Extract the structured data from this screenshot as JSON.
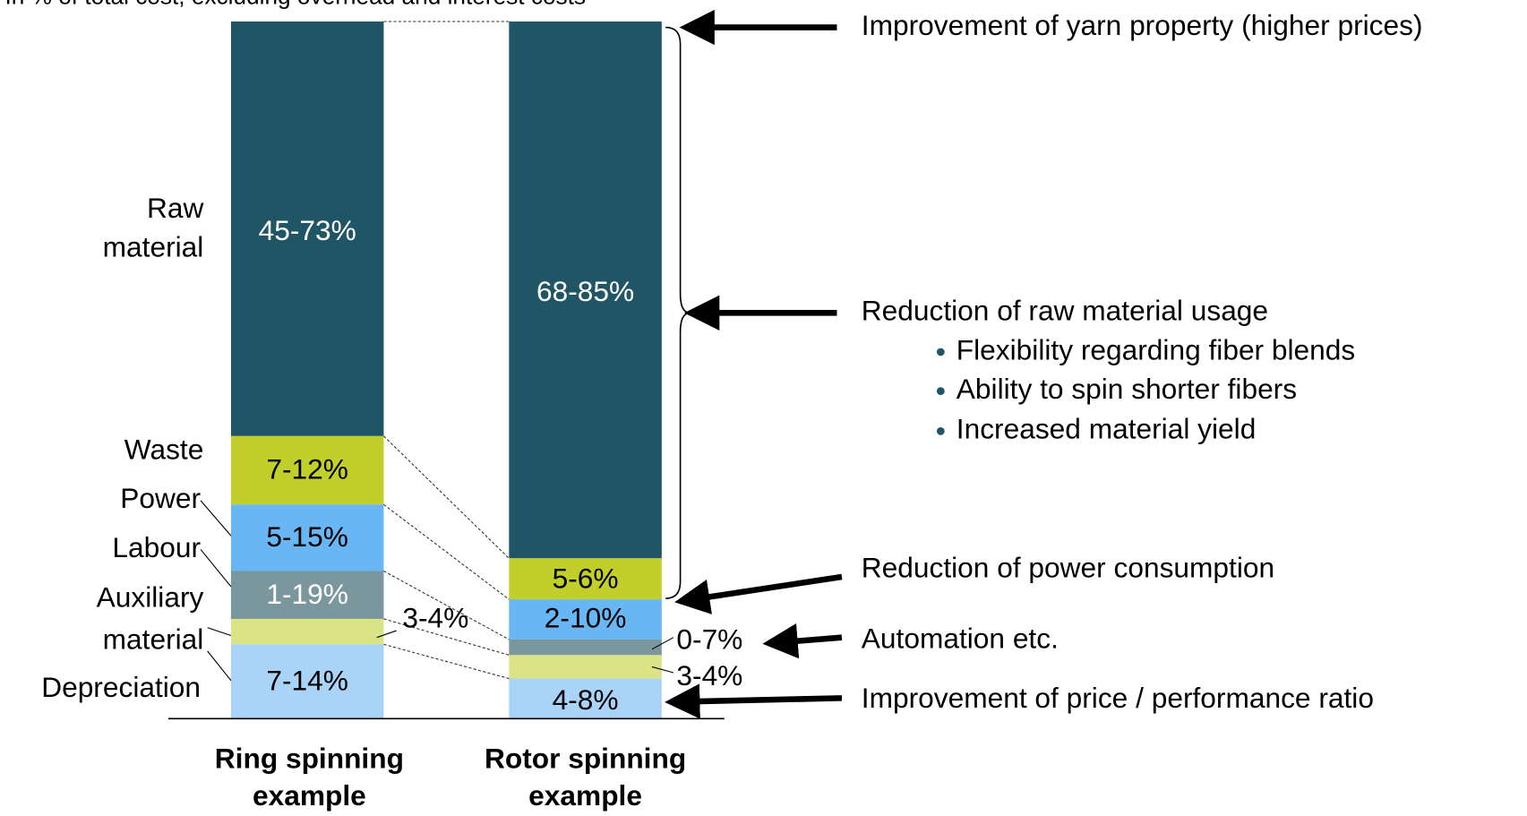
{
  "subtitle": "In % of total cost, excluding overhead and interest costs",
  "row_labels": {
    "raw": [
      "Raw",
      "material"
    ],
    "waste": "Waste",
    "power": "Power",
    "labour": "Labour",
    "auxiliary": [
      "Auxiliary",
      "material"
    ],
    "depreciation": "Depreciation"
  },
  "bars": [
    {
      "name": [
        "Ring spinning",
        "example"
      ],
      "segments": {
        "raw": "45-73%",
        "waste": "7-12%",
        "power": "5-15%",
        "labour": "1-19%",
        "auxiliary": "3-4%",
        "depreciation": "7-14%"
      }
    },
    {
      "name": [
        "Rotor spinning",
        "example"
      ],
      "segments": {
        "raw": "68-85%",
        "waste": "5-6%",
        "power": "2-10%",
        "labour": "0-7%",
        "auxiliary": "3-4%",
        "depreciation": "4-8%"
      }
    }
  ],
  "annotations": {
    "yarn": "Improvement of yarn property (higher prices)",
    "raw": "Reduction of raw material usage",
    "bullets": [
      "Flexibility regarding fiber blends",
      "Ability to spin shorter fibers",
      "Increased material yield"
    ],
    "power": "Reduction of power consumption",
    "automation": "Automation etc.",
    "price": "Improvement of price / performance ratio"
  }
}
